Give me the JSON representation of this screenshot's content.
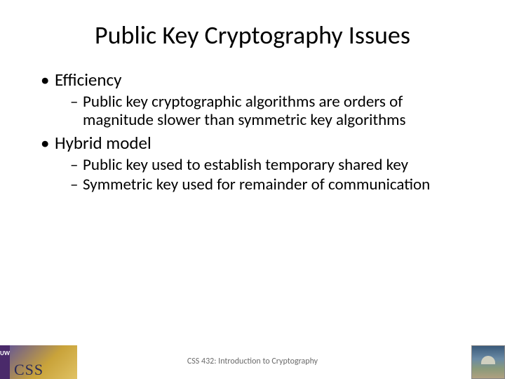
{
  "title": "Public Key Cryptography Issues",
  "bullets": {
    "b1": "Efficiency",
    "b1_1": "Public key cryptographic algorithms are orders of magnitude slower than symmetric key algorithms",
    "b2": "Hybrid model",
    "b2_1": "Public key used to establish temporary shared key",
    "b2_2": "Symmetric key used for remainder of communication"
  },
  "footer": "CSS 432: Introduction to Cryptography",
  "logo": {
    "left_text": "CSS",
    "strip_letters": "UWB"
  },
  "colors": {
    "text": "#000000",
    "footer_text": "#6b6b6b",
    "background": "#ffffff",
    "uwb_purple": "#4a2a6a"
  },
  "fonts": {
    "title_size_pt": 36,
    "lvl1_size_pt": 25,
    "lvl2_size_pt": 23,
    "footer_size_pt": 12
  }
}
